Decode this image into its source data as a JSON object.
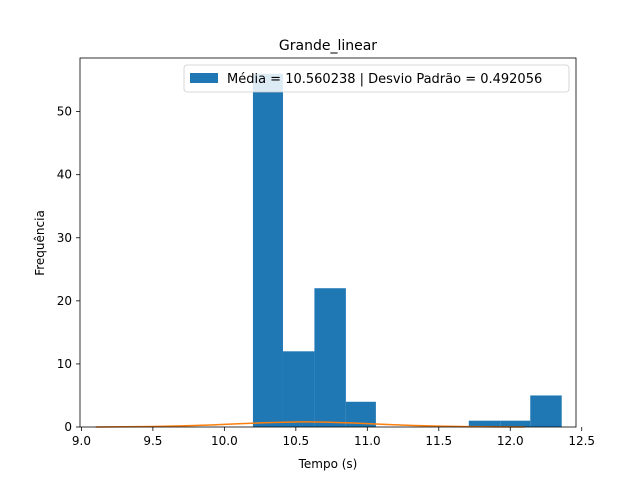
{
  "chart_data": {
    "type": "bar",
    "title": "Grande_linear",
    "xlabel": "Tempo (s)",
    "ylabel": "Frequência",
    "xlim": [
      8.99,
      12.46
    ],
    "ylim": [
      0,
      58.5
    ],
    "xticks": [
      9.0,
      9.5,
      10.0,
      10.5,
      11.0,
      11.5,
      12.0,
      12.5
    ],
    "xtick_labels": [
      "9.0",
      "9.5",
      "10.0",
      "10.5",
      "11.0",
      "11.5",
      "12.0",
      "12.5"
    ],
    "yticks": [
      0,
      10,
      20,
      30,
      40,
      50
    ],
    "ytick_labels": [
      "0",
      "10",
      "20",
      "30",
      "40",
      "50"
    ],
    "grid": false,
    "legend_position": "top-right",
    "histogram": {
      "name": "Média = 10.560238 | Desvio Padrão = 0.492056",
      "color": "#1f77b4",
      "bin_edges": [
        10.2,
        10.41,
        10.63,
        10.85,
        11.06,
        11.28,
        11.5,
        11.71,
        11.93,
        12.14,
        12.36
      ],
      "counts": [
        56,
        12,
        22,
        4,
        0,
        0,
        0,
        1,
        1,
        5
      ]
    },
    "normal_curve": {
      "color": "#ff7f0e",
      "x": [
        9.1,
        9.3,
        9.5,
        9.7,
        9.9,
        10.1,
        10.3,
        10.5,
        10.56,
        10.7,
        10.9,
        11.1,
        11.3,
        11.5,
        11.7,
        11.9,
        12.1
      ],
      "y": [
        0.01,
        0.03,
        0.08,
        0.17,
        0.32,
        0.52,
        0.7,
        0.8,
        0.81,
        0.77,
        0.64,
        0.44,
        0.26,
        0.13,
        0.05,
        0.02,
        0.01
      ]
    }
  }
}
